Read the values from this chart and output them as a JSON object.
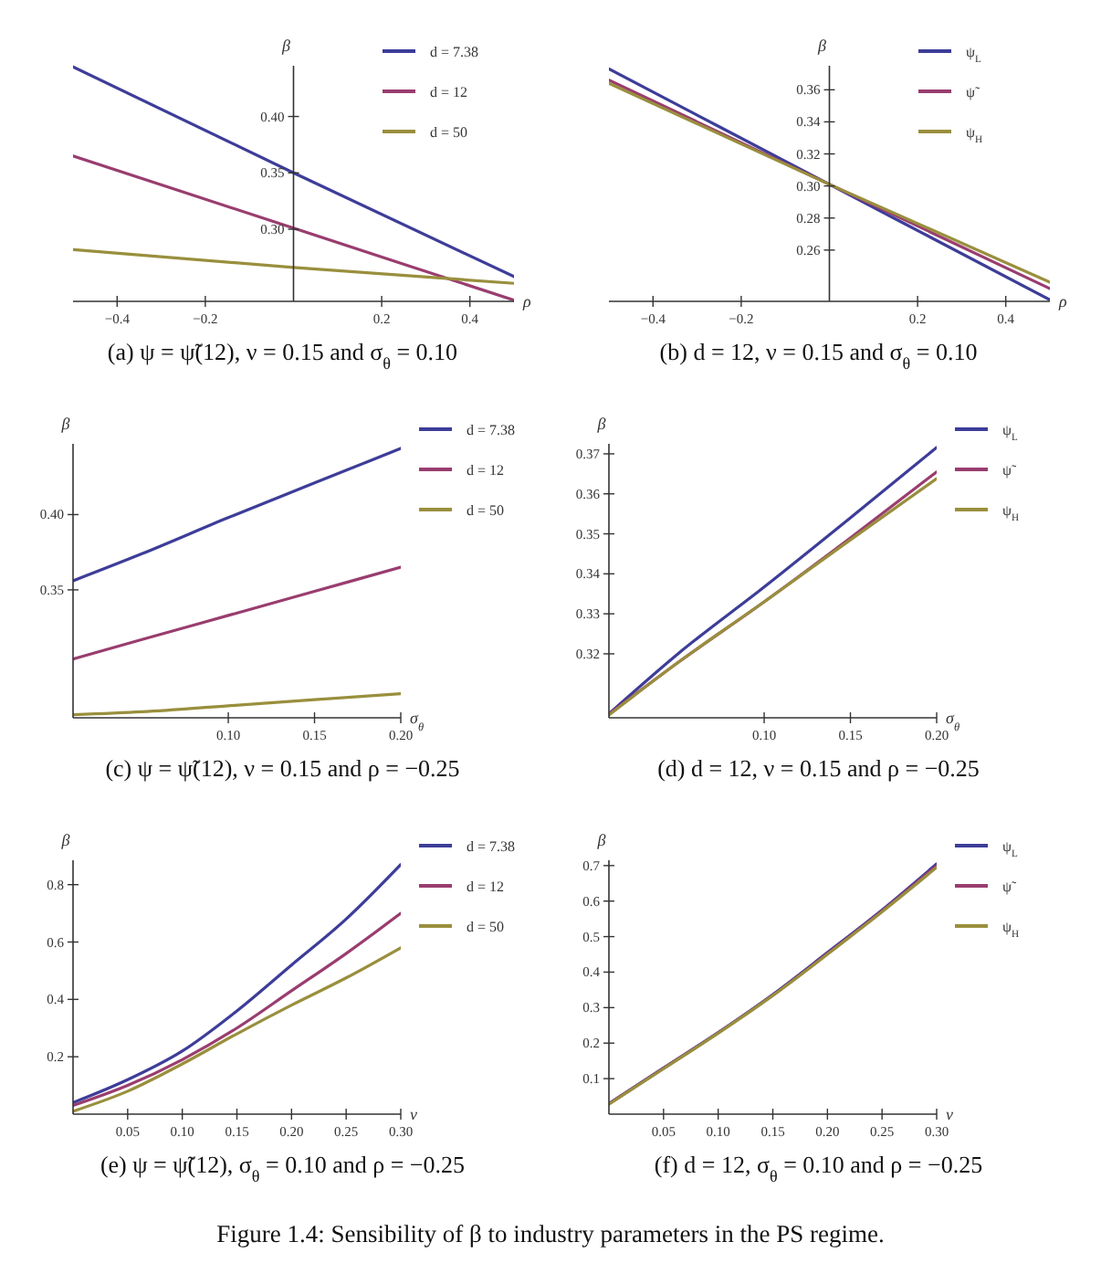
{
  "chart_data": [
    {
      "type": "line",
      "title": "(a) ψ = ψ̃(12), ν = 0.15 and σ$_{θ}$ = 0.10",
      "xlabel": "ρ",
      "ylabel": "β",
      "legend": "top right",
      "x": [
        -0.5,
        0,
        0.5
      ],
      "xlim": [
        -0.5,
        0.5
      ],
      "ylim": [
        0.236,
        0.445
      ],
      "xticks": [
        {
          "value": -0.4,
          "label": "−0.4"
        },
        {
          "value": -0.2,
          "label": "−0.2"
        },
        {
          "value": 0.2,
          "label": "0.2"
        },
        {
          "value": 0.4,
          "label": "0.4"
        }
      ],
      "yticks": [
        {
          "value": 0.3,
          "label": "0.30"
        },
        {
          "value": 0.35,
          "label": "0.35"
        },
        {
          "value": 0.4,
          "label": "0.40"
        }
      ],
      "series": [
        {
          "name": "d = 7.38",
          "color": "#3d3d99",
          "values": [
            0.444,
            0.35,
            0.258
          ]
        },
        {
          "name": "d = 12",
          "color": "#993d6f",
          "values": [
            0.365,
            0.301,
            0.237
          ]
        },
        {
          "name": "d = 50",
          "color": "#998f3d",
          "values": [
            0.282,
            0.266,
            0.252
          ]
        }
      ]
    },
    {
      "type": "line",
      "title": "(b) d = 12, ν = 0.15 and σ$_{θ}$ = 0.10",
      "xlabel": "ρ",
      "ylabel": "β",
      "legend": "top right",
      "x": [
        -0.5,
        0,
        0.5
      ],
      "xlim": [
        -0.5,
        0.5
      ],
      "ylim": [
        0.228,
        0.375
      ],
      "xticks": [
        {
          "value": -0.4,
          "label": "−0.4"
        },
        {
          "value": -0.2,
          "label": "−0.2"
        },
        {
          "value": 0.2,
          "label": "0.2"
        },
        {
          "value": 0.4,
          "label": "0.4"
        }
      ],
      "yticks": [
        0.26,
        0.28,
        {
          "value": 0.3,
          "label": "0.30"
        },
        0.32,
        0.34,
        0.36
      ],
      "series": [
        {
          "name": "ψ$_{L}$",
          "color": "#3d3d99",
          "values": [
            0.373,
            0.301,
            0.229
          ]
        },
        {
          "name": "ψ̃",
          "color": "#993d6f",
          "values": [
            0.366,
            0.301,
            0.236
          ]
        },
        {
          "name": "ψ$_{H}$",
          "color": "#998f3d",
          "values": [
            0.364,
            0.301,
            0.24
          ]
        }
      ]
    },
    {
      "type": "line",
      "title": "(c) ψ = ψ̃(12), ν = 0.15 and ρ = −0.25",
      "xlabel": "σ$_{θ}$",
      "ylabel": "β",
      "legend": "right",
      "x": [
        0.01,
        0.05,
        0.1,
        0.15,
        0.2
      ],
      "xlim": [
        0.01,
        0.2
      ],
      "ylim": [
        0.265,
        0.447
      ],
      "xticks": [
        {
          "value": 0.1,
          "label": "0.10"
        },
        0.15,
        {
          "value": 0.2,
          "label": "0.20"
        }
      ],
      "yticks": [
        0.35,
        {
          "value": 0.4,
          "label": "0.40"
        }
      ],
      "series": [
        {
          "name": "d = 7.38",
          "color": "#3d3d99",
          "values": [
            0.356,
            0.374,
            0.398,
            0.421,
            0.444
          ]
        },
        {
          "name": "d = 12",
          "color": "#993d6f",
          "values": [
            0.304,
            0.317,
            0.333,
            0.349,
            0.365
          ]
        },
        {
          "name": "d = 50",
          "color": "#998f3d",
          "values": [
            0.267,
            0.269,
            0.273,
            0.277,
            0.281
          ]
        }
      ]
    },
    {
      "type": "line",
      "title": "(d) d = 12, ν = 0.15 and ρ = −0.25",
      "xlabel": "σ$_{θ}$",
      "ylabel": "β",
      "legend": "right",
      "x": [
        0.01,
        0.05,
        0.1,
        0.15,
        0.2
      ],
      "xlim": [
        0.01,
        0.2
      ],
      "ylim": [
        0.304,
        0.3725
      ],
      "xticks": [
        {
          "value": 0.1,
          "label": "0.10"
        },
        0.15,
        {
          "value": 0.2,
          "label": "0.20"
        }
      ],
      "yticks": [
        0.32,
        0.33,
        0.34,
        0.35,
        0.36,
        0.37
      ],
      "series": [
        {
          "name": "ψ$_{L}$",
          "color": "#3d3d99",
          "values": [
            0.305,
            0.32,
            0.3367,
            0.354,
            0.3716
          ]
        },
        {
          "name": "ψ̃",
          "color": "#993d6f",
          "values": [
            0.3049,
            0.3178,
            0.333,
            0.349,
            0.3655
          ]
        },
        {
          "name": "ψ$_{H}$",
          "color": "#998f3d",
          "values": [
            0.3047,
            0.3178,
            0.333,
            0.3485,
            0.3638
          ]
        }
      ]
    },
    {
      "type": "line",
      "title": "(e) ψ = ψ̃(12), σ$_{θ}$ = 0.10 and ρ = −0.25",
      "xlabel": "ν",
      "ylabel": "β",
      "legend": "right",
      "x": [
        0,
        0.05,
        0.1,
        0.15,
        0.2,
        0.25,
        0.3
      ],
      "xlim": [
        0,
        0.3
      ],
      "ylim": [
        0,
        0.885
      ],
      "xticks": [
        0.05,
        {
          "value": 0.1,
          "label": "0.10"
        },
        0.15,
        {
          "value": 0.2,
          "label": "0.20"
        },
        0.25,
        {
          "value": 0.3,
          "label": "0.30"
        }
      ],
      "yticks": [
        0.2,
        0.4,
        0.6,
        0.8
      ],
      "series": [
        {
          "name": "d = 7.38",
          "color": "#3d3d99",
          "values": [
            0.04,
            0.12,
            0.22,
            0.36,
            0.52,
            0.68,
            0.87
          ]
        },
        {
          "name": "d = 12",
          "color": "#993d6f",
          "values": [
            0.03,
            0.1,
            0.19,
            0.3,
            0.43,
            0.56,
            0.7
          ]
        },
        {
          "name": "d = 50",
          "color": "#998f3d",
          "values": [
            0.01,
            0.08,
            0.175,
            0.28,
            0.38,
            0.475,
            0.58
          ]
        }
      ]
    },
    {
      "type": "line",
      "title": "(f) d = 12, σ$_{θ}$ = 0.10 and ρ = −0.25",
      "xlabel": "ν",
      "ylabel": "β",
      "legend": "right",
      "x": [
        0,
        0.05,
        0.1,
        0.15,
        0.2,
        0.25,
        0.3
      ],
      "xlim": [
        0,
        0.3
      ],
      "ylim": [
        0,
        0.715
      ],
      "xticks": [
        0.05,
        {
          "value": 0.1,
          "label": "0.10"
        },
        0.15,
        {
          "value": 0.2,
          "label": "0.20"
        },
        0.25,
        {
          "value": 0.3,
          "label": "0.30"
        }
      ],
      "yticks": [
        0.1,
        0.2,
        0.3,
        0.4,
        0.5,
        0.6,
        0.7
      ],
      "annotations": [
        "Figure 1.4: Sensibility of β to industry parameters in the PS regime."
      ],
      "series": [
        {
          "name": "ψ$_{L}$",
          "color": "#3d3d99",
          "values": [
            0.03,
            0.13,
            0.23,
            0.337,
            0.455,
            0.575,
            0.705
          ]
        },
        {
          "name": "ψ̃",
          "color": "#993d6f",
          "values": [
            0.029,
            0.129,
            0.229,
            0.335,
            0.452,
            0.572,
            0.7
          ]
        },
        {
          "name": "ψ$_{H}$",
          "color": "#998f3d",
          "values": [
            0.028,
            0.128,
            0.228,
            0.334,
            0.45,
            0.57,
            0.695
          ]
        }
      ]
    }
  ]
}
